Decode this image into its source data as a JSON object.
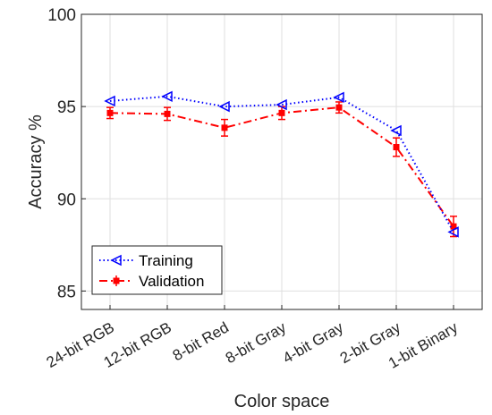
{
  "chart_data": {
    "type": "line",
    "title": "",
    "xlabel": "Color space",
    "ylabel": "Accuracy %",
    "ylim": [
      84,
      100
    ],
    "yticks": [
      85,
      90,
      95,
      100
    ],
    "grid": true,
    "legend_position": "bottom-left",
    "categories": [
      "24-bit RGB",
      "12-bit RGB",
      "8-bit Red",
      "8-bit Gray",
      "4-bit Gray",
      "2-bit Gray",
      "1-bit Binary"
    ],
    "series": [
      {
        "name": "Training",
        "values": [
          95.3,
          95.55,
          95.0,
          95.1,
          95.5,
          93.7,
          88.2
        ],
        "color": "#0000ff",
        "line_style": "dotted",
        "marker": "left-triangle"
      },
      {
        "name": "Validation",
        "values": [
          94.65,
          94.6,
          93.85,
          94.65,
          94.95,
          92.8,
          88.5
        ],
        "errors": [
          0.3,
          0.35,
          0.45,
          0.35,
          0.3,
          0.5,
          0.55
        ],
        "color": "#ff0000",
        "line_style": "dash-dot",
        "marker": "square"
      }
    ]
  }
}
